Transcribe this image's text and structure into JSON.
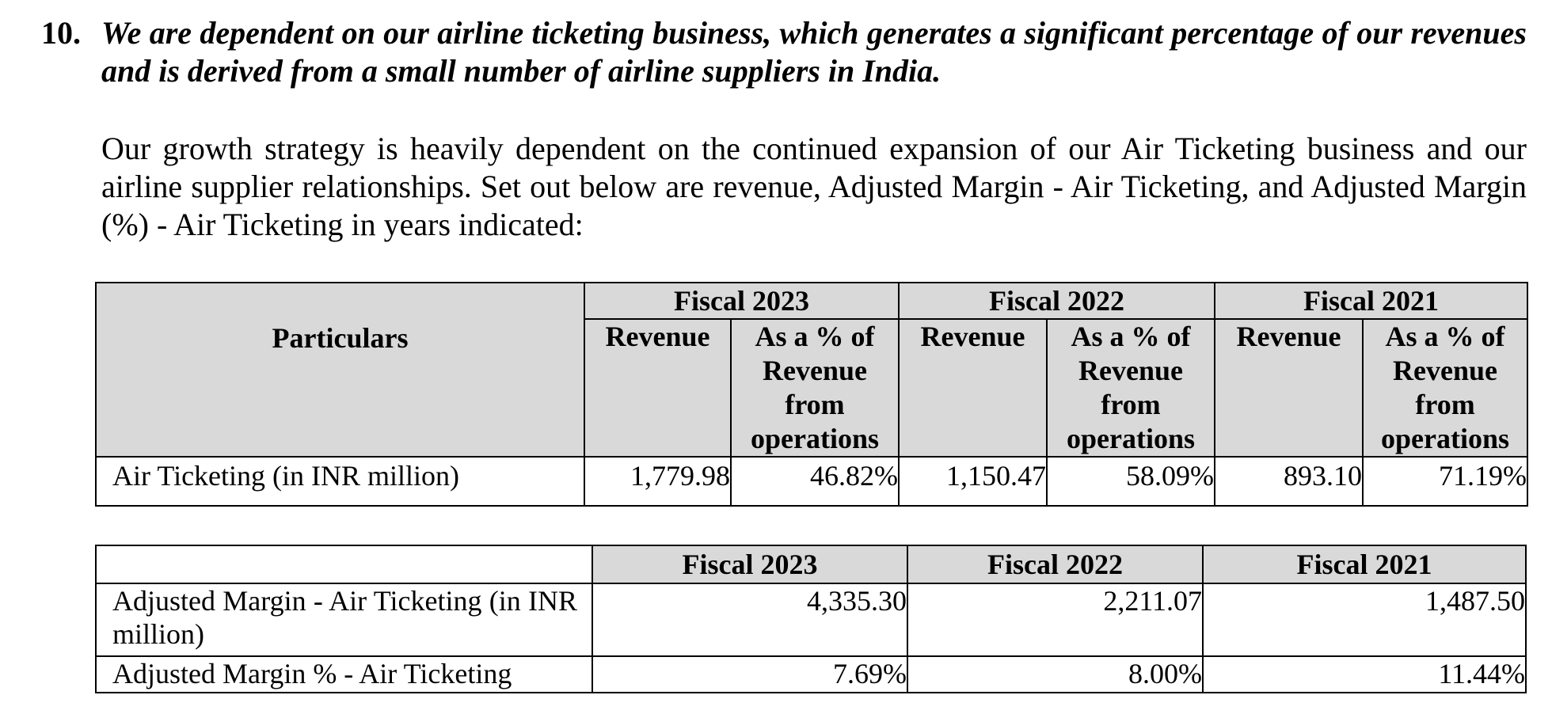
{
  "risk_factor": {
    "number": "10.",
    "heading": "We are dependent on our airline ticketing business, which generates a significant percentage of our revenues and is derived from a small number of airline suppliers in India.",
    "paragraph": "Our growth strategy is heavily dependent on the continued expansion of our Air Ticketing business and our airline supplier relationships. Set out below are revenue, Adjusted Margin - Air Ticketing, and Adjusted Margin (%) - Air Ticketing in years indicated:"
  },
  "revenue_table": {
    "particulars_header": "Particulars",
    "fiscal_headers": [
      "Fiscal 2023",
      "Fiscal 2022",
      "Fiscal 2021"
    ],
    "sub_headers": {
      "revenue": "Revenue",
      "percent": "As a % of Revenue from operations"
    },
    "rows": [
      {
        "label": "Air Ticketing (in INR million)",
        "values": [
          "1,779.98",
          "46.82%",
          "1,150.47",
          "58.09%",
          "893.10",
          "71.19%"
        ]
      }
    ]
  },
  "margin_table": {
    "fiscal_headers": [
      "Fiscal 2023",
      "Fiscal 2022",
      "Fiscal 2021"
    ],
    "rows": [
      {
        "label": "Adjusted Margin - Air Ticketing (in INR million)",
        "values": [
          "4,335.30",
          "2,211.07",
          "1,487.50"
        ]
      },
      {
        "label": "Adjusted Margin % - Air Ticketing",
        "values": [
          "7.69%",
          "8.00%",
          "11.44%"
        ]
      }
    ]
  }
}
